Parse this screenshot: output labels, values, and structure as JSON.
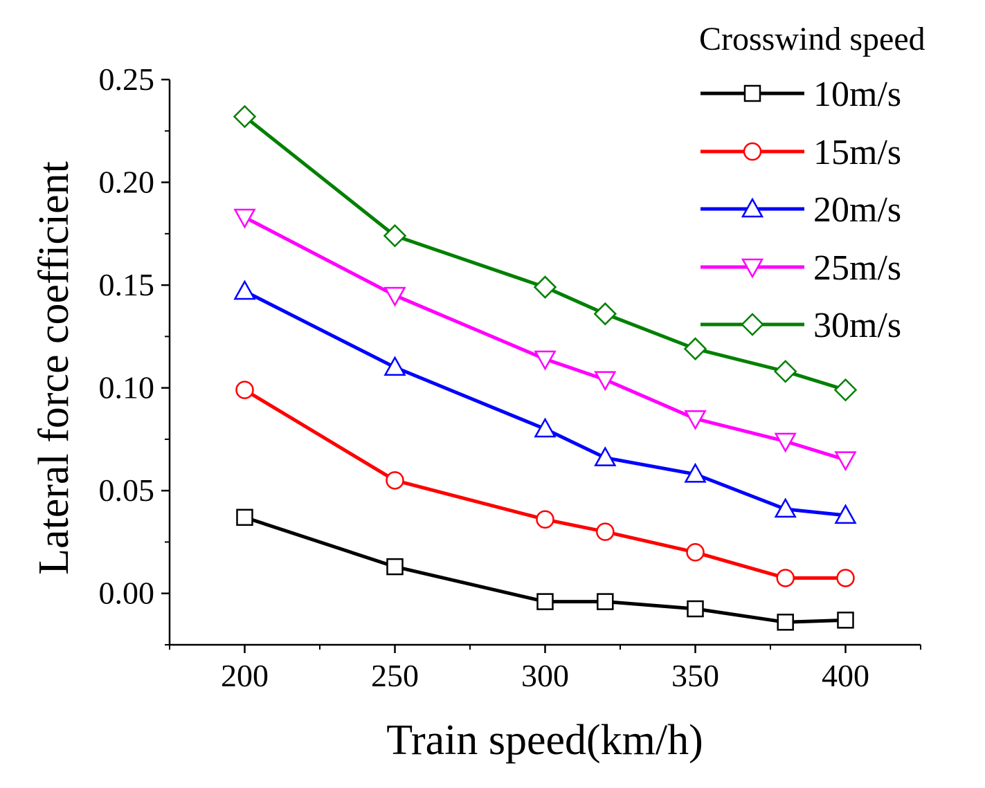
{
  "chart_data": {
    "type": "line",
    "title": "",
    "xlabel": "Train speed(km/h)",
    "ylabel": "Lateral force coefficient",
    "xlim": [
      175,
      425
    ],
    "ylim": [
      -0.025,
      0.25
    ],
    "x_ticks": [
      200,
      250,
      300,
      350,
      400
    ],
    "x_tick_labels": [
      "200",
      "250",
      "300",
      "350",
      "400"
    ],
    "y_ticks": [
      0.0,
      0.05,
      0.1,
      0.15,
      0.2,
      0.25
    ],
    "y_tick_labels": [
      "0.00",
      "0.05",
      "0.10",
      "0.15",
      "0.20",
      "0.25"
    ],
    "legend_title": "Crosswind speed",
    "legend_position": "top-right",
    "grid": false,
    "x": [
      200,
      250,
      300,
      320,
      350,
      380,
      400
    ],
    "series": [
      {
        "name": "10m/s",
        "color": "#000000",
        "marker": "square",
        "values": [
          0.037,
          0.013,
          -0.004,
          -0.004,
          -0.0075,
          -0.014,
          -0.013
        ]
      },
      {
        "name": "15m/s",
        "color": "#ff0000",
        "marker": "circle",
        "values": [
          0.099,
          0.055,
          0.036,
          0.03,
          0.02,
          0.0075,
          0.0075
        ]
      },
      {
        "name": "20m/s",
        "color": "#0000ff",
        "marker": "triangle-up",
        "values": [
          0.147,
          0.11,
          0.08,
          0.066,
          0.058,
          0.041,
          0.038
        ]
      },
      {
        "name": "25m/s",
        "color": "#ff00ff",
        "marker": "triangle-down",
        "values": [
          0.183,
          0.145,
          0.114,
          0.104,
          0.085,
          0.074,
          0.065
        ]
      },
      {
        "name": "30m/s",
        "color": "#008000",
        "marker": "diamond",
        "values": [
          0.232,
          0.174,
          0.149,
          0.136,
          0.119,
          0.108,
          0.099
        ]
      }
    ]
  }
}
